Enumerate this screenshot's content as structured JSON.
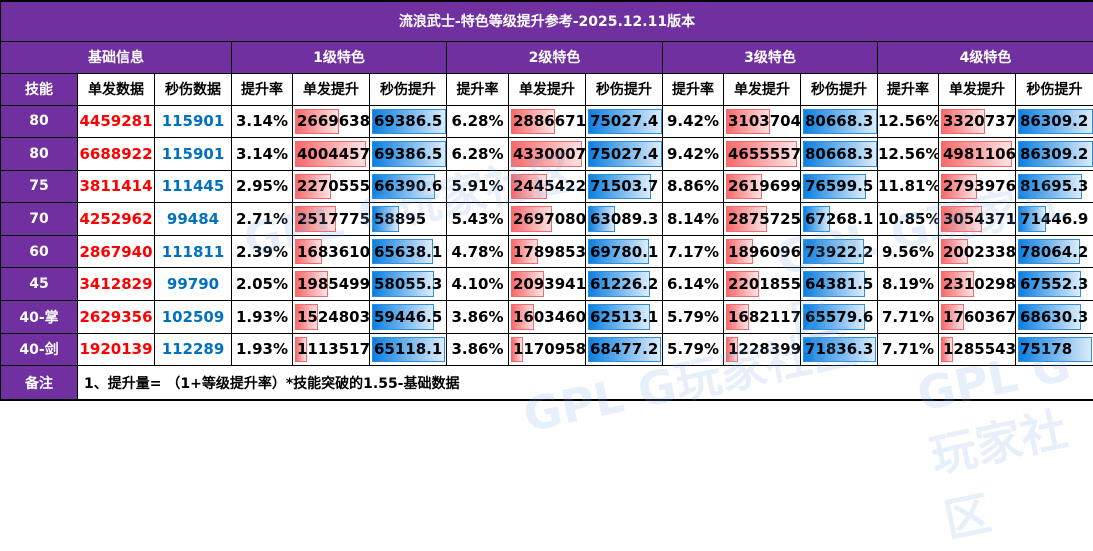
{
  "title": "流浪武士-特色等级提升参考-2025.12.11版本",
  "header": {
    "base_group": "基础信息",
    "groups": [
      "1级特色",
      "2级特色",
      "3级特色",
      "4级特色"
    ],
    "skill_col": "技能",
    "single_col": "单发数据",
    "dps_col": "秒伤数据",
    "sub_cols": [
      "提升率",
      "单发提升",
      "秒伤提升"
    ]
  },
  "rows": [
    {
      "skill": "80",
      "single": "4459281",
      "dps": "115901",
      "levels": [
        {
          "rate": "3.14%",
          "single": "2669638",
          "sb": 58,
          "dps": "69386.5",
          "db": 97
        },
        {
          "rate": "6.28%",
          "single": "2886671",
          "sb": 58,
          "dps": "75027.4",
          "db": 97
        },
        {
          "rate": "9.42%",
          "single": "3103704",
          "sb": 58,
          "dps": "80668.3",
          "db": 97
        },
        {
          "rate": "12.56%",
          "single": "3320737",
          "sb": 58,
          "dps": "86309.2",
          "db": 97
        }
      ]
    },
    {
      "skill": "80",
      "single": "6688922",
      "dps": "115901",
      "levels": [
        {
          "rate": "3.14%",
          "single": "4004457",
          "sb": 94,
          "dps": "69386.5",
          "db": 97
        },
        {
          "rate": "6.28%",
          "single": "4330007",
          "sb": 94,
          "dps": "75027.4",
          "db": 97
        },
        {
          "rate": "9.42%",
          "single": "4655557",
          "sb": 94,
          "dps": "80668.3",
          "db": 97
        },
        {
          "rate": "12.56%",
          "single": "4981106",
          "sb": 94,
          "dps": "86309.2",
          "db": 97
        }
      ]
    },
    {
      "skill": "75",
      "single": "3811414",
      "dps": "111445",
      "levels": [
        {
          "rate": "2.95%",
          "single": "2270555",
          "sb": 47,
          "dps": "66390.6",
          "db": 83
        },
        {
          "rate": "5.91%",
          "single": "2445422",
          "sb": 47,
          "dps": "71503.7",
          "db": 83
        },
        {
          "rate": "8.86%",
          "single": "2619699",
          "sb": 47,
          "dps": "76599.5",
          "db": 83
        },
        {
          "rate": "11.81%",
          "single": "2793976",
          "sb": 47,
          "dps": "81695.3",
          "db": 83
        }
      ]
    },
    {
      "skill": "70",
      "single": "4252962",
      "dps": "99484",
      "levels": [
        {
          "rate": "2.71%",
          "single": "2517775",
          "sb": 54,
          "dps": "58895",
          "db": 36
        },
        {
          "rate": "5.43%",
          "single": "2697080",
          "sb": 54,
          "dps": "63089.3",
          "db": 36
        },
        {
          "rate": "8.14%",
          "single": "2875725",
          "sb": 54,
          "dps": "67268.1",
          "db": 36
        },
        {
          "rate": "10.85%",
          "single": "3054371",
          "sb": 54,
          "dps": "71446.9",
          "db": 36
        }
      ]
    },
    {
      "skill": "60",
      "single": "2867940",
      "dps": "111811",
      "levels": [
        {
          "rate": "2.39%",
          "single": "1683610",
          "sb": 36,
          "dps": "65638.1",
          "db": 80
        },
        {
          "rate": "4.78%",
          "single": "1789853",
          "sb": 36,
          "dps": "69780.1",
          "db": 80
        },
        {
          "rate": "7.17%",
          "single": "1896096",
          "sb": 36,
          "dps": "73922.2",
          "db": 80
        },
        {
          "rate": "9.56%",
          "single": "2002338",
          "sb": 36,
          "dps": "78064.2",
          "db": 80
        }
      ]
    },
    {
      "skill": "45",
      "single": "3412829",
      "dps": "99790",
      "levels": [
        {
          "rate": "2.05%",
          "single": "1985499",
          "sb": 43,
          "dps": "58055.3",
          "db": 82
        },
        {
          "rate": "4.10%",
          "single": "2093941",
          "sb": 43,
          "dps": "61226.2",
          "db": 82
        },
        {
          "rate": "6.14%",
          "single": "2201855",
          "sb": 43,
          "dps": "64381.5",
          "db": 82
        },
        {
          "rate": "8.19%",
          "single": "2310298",
          "sb": 43,
          "dps": "67552.3",
          "db": 82
        }
      ]
    },
    {
      "skill": "40-掌",
      "single": "2629356",
      "dps": "102509",
      "levels": [
        {
          "rate": "1.93%",
          "single": "1524803",
          "sb": 30,
          "dps": "59446.5",
          "db": 82
        },
        {
          "rate": "3.86%",
          "single": "1603460",
          "sb": 30,
          "dps": "62513.1",
          "db": 82
        },
        {
          "rate": "5.79%",
          "single": "1682117",
          "sb": 30,
          "dps": "65579.6",
          "db": 82
        },
        {
          "rate": "7.71%",
          "single": "1760367",
          "sb": 30,
          "dps": "68630.3",
          "db": 82
        }
      ]
    },
    {
      "skill": "40-剑",
      "single": "1920139",
      "dps": "112289",
      "levels": [
        {
          "rate": "1.93%",
          "single": "1113517",
          "sb": 16,
          "dps": "65118.1",
          "db": 96
        },
        {
          "rate": "3.86%",
          "single": "1170958",
          "sb": 16,
          "dps": "68477.2",
          "db": 96
        },
        {
          "rate": "5.79%",
          "single": "1228399",
          "sb": 16,
          "dps": "71836.3",
          "db": 96
        },
        {
          "rate": "7.71%",
          "single": "1285543",
          "sb": 16,
          "dps": "75178",
          "db": 96
        }
      ]
    }
  ],
  "notes": {
    "label": "备注",
    "text": "1、提升量= （1+等级提升率）*技能突破的1.55-基础数据"
  },
  "watermark": "GPL G玩家社区",
  "colors": {
    "header_purple": "#7030a0",
    "single_red": "#ff0000",
    "dps_blue": "#0070c0",
    "bar_red": "#f8696b",
    "bar_blue": "#0a7fe0"
  }
}
